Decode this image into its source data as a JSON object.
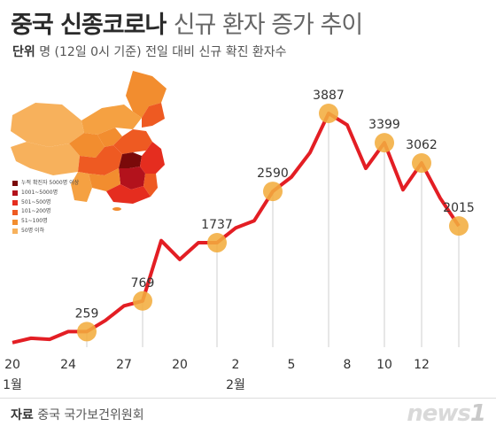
{
  "header": {
    "title_main": "중국 신종코로나",
    "title_rest": "신규 환자 증가 추이",
    "unit_label": "단위",
    "unit_text": "명 (12일  0시 기준) 전일 대비 신규 확진 환자수"
  },
  "footer": {
    "source_label": "자료",
    "source_text": "중국 국가보건위원회",
    "logo_text": "news1"
  },
  "map_legend": [
    {
      "label": "누적 확진자 5000명 이상",
      "color": "#7a0a0a"
    },
    {
      "label": "1001~5000명",
      "color": "#b3121c"
    },
    {
      "label": "501~500명",
      "color": "#e52d1f"
    },
    {
      "label": "101~200명",
      "color": "#ee5a22"
    },
    {
      "label": "51~100명",
      "color": "#f28d2f"
    },
    {
      "label": "50명 이하",
      "color": "#f7b15c"
    }
  ],
  "chart_data": {
    "type": "line",
    "x_ticks": [
      "20",
      "24",
      "27",
      "20",
      "2",
      "5",
      "8",
      "10",
      "12"
    ],
    "month_labels": [
      {
        "label": "1월",
        "at": "20"
      },
      {
        "label": "2월",
        "at": "2"
      }
    ],
    "highlighted_points": [
      {
        "index": 4,
        "value": 259
      },
      {
        "index": 7,
        "value": 769
      },
      {
        "index": 11,
        "value": 1737
      },
      {
        "index": 14,
        "value": 2590
      },
      {
        "index": 17,
        "value": 3887
      },
      {
        "index": 20,
        "value": 3399
      },
      {
        "index": 22,
        "value": 3062
      },
      {
        "index": 24,
        "value": 2015
      }
    ],
    "series": [
      {
        "values": [
          77,
          149,
          131,
          259,
          259,
          444,
          688,
          769,
          1771,
          1459,
          1737,
          1737,
          1982,
          2102,
          2590,
          2829,
          3235,
          3887,
          3694,
          2973,
          3399,
          2617,
          3062,
          2478,
          2015
        ]
      }
    ],
    "ylim": [
      0,
      4200
    ]
  }
}
